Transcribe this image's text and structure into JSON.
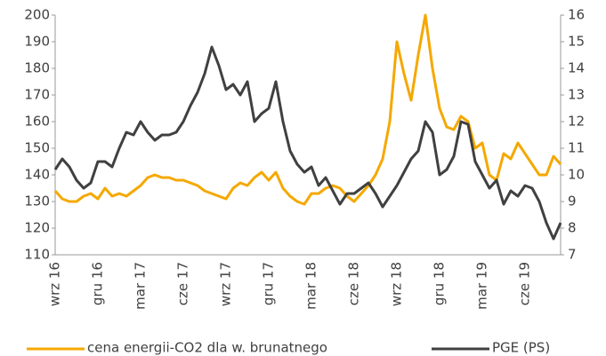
{
  "chart_data": {
    "type": "line",
    "categories": [
      "wrz 16",
      null,
      null,
      null,
      null,
      null,
      "gru 16",
      null,
      null,
      null,
      null,
      null,
      "mar 17",
      null,
      null,
      null,
      null,
      null,
      "cze 17",
      null,
      null,
      null,
      null,
      null,
      "wrz 17",
      null,
      null,
      null,
      null,
      null,
      "gru 17",
      null,
      null,
      null,
      null,
      null,
      "mar 18",
      null,
      null,
      null,
      null,
      null,
      "cze 18",
      null,
      null,
      null,
      null,
      null,
      "wrz 18",
      null,
      null,
      null,
      null,
      null,
      "gru 18",
      null,
      null,
      null,
      null,
      null,
      "mar 19",
      null,
      null,
      null,
      null,
      null,
      "cze 19",
      null,
      null,
      null,
      null,
      null
    ],
    "series": [
      {
        "name": "cena energii-CO2 dla w. brunatnego",
        "color": "#f5a800",
        "axis": "y",
        "values": [
          134,
          131,
          130,
          130,
          132,
          133,
          131,
          135,
          132,
          133,
          132,
          134,
          136,
          139,
          140,
          139,
          139,
          138,
          138,
          137,
          136,
          134,
          133,
          132,
          131,
          135,
          137,
          136,
          139,
          141,
          138,
          141,
          135,
          132,
          130,
          129,
          133,
          133,
          135,
          136,
          135,
          132,
          130,
          133,
          136,
          140,
          146,
          160,
          190,
          178,
          168,
          185,
          200,
          180,
          165,
          158,
          157,
          162,
          160,
          150,
          152,
          140,
          138,
          148,
          146,
          152,
          148,
          144,
          140,
          140,
          147,
          144
        ]
      },
      {
        "name": "PGE (PS)",
        "color": "#404040",
        "axis": "y2",
        "values": [
          10.2,
          10.6,
          10.3,
          9.8,
          9.5,
          9.7,
          10.5,
          10.5,
          10.3,
          11.0,
          11.6,
          11.5,
          12.0,
          11.6,
          11.3,
          11.5,
          11.5,
          11.6,
          12.0,
          12.6,
          13.1,
          13.8,
          14.8,
          14.1,
          13.2,
          13.4,
          13.0,
          13.5,
          12.0,
          12.3,
          12.5,
          13.5,
          12.0,
          10.9,
          10.4,
          10.1,
          10.3,
          9.6,
          9.9,
          9.4,
          8.9,
          9.3,
          9.3,
          9.5,
          9.7,
          9.3,
          8.8,
          9.2,
          9.6,
          10.1,
          10.6,
          10.9,
          12.0,
          11.6,
          10.0,
          10.2,
          10.7,
          12.0,
          11.9,
          10.5,
          10.0,
          9.5,
          9.8,
          8.9,
          9.4,
          9.2,
          9.6,
          9.5,
          9.0,
          8.2,
          7.6,
          8.2
        ]
      }
    ],
    "ylim": [
      110,
      200
    ],
    "yticks": [
      110,
      120,
      130,
      140,
      150,
      160,
      170,
      180,
      190,
      200
    ],
    "y2lim": [
      7,
      16
    ],
    "y2ticks": [
      7,
      8,
      9,
      10,
      11,
      12,
      13,
      14,
      15,
      16
    ],
    "grid": false,
    "legend": "bottom"
  }
}
